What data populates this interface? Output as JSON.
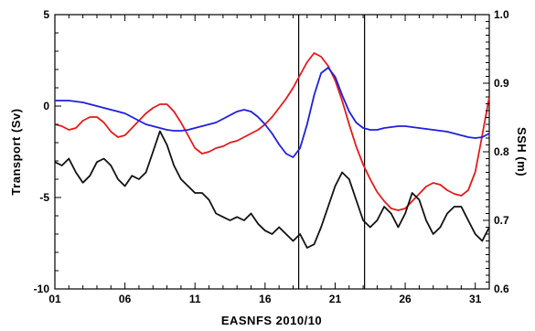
{
  "chart_data": {
    "type": "line",
    "title": "",
    "xlabel": "EASNFS 2010/10",
    "ylabel_left": "Transport (Sv)",
    "ylabel_right": "SSH (m)",
    "x_ticks": [
      "01",
      "06",
      "11",
      "16",
      "21",
      "26",
      "31"
    ],
    "x_tick_values": [
      1,
      6,
      11,
      16,
      21,
      26,
      31
    ],
    "xlim": [
      1,
      32
    ],
    "y_left_ticks": [
      "5",
      "0",
      "-5",
      "-10"
    ],
    "y_left_tick_values": [
      5,
      0,
      -5,
      -10
    ],
    "y_left_lim": [
      -10,
      5
    ],
    "y_right_ticks": [
      "1.0",
      "0.9",
      "0.8",
      "0.7",
      "0.6"
    ],
    "y_right_tick_values": [
      1.0,
      0.9,
      0.8,
      0.7,
      0.6
    ],
    "y_right_lim": [
      0.6,
      1.0
    ],
    "vertical_lines_x": [
      18.4,
      23.1
    ],
    "grid": false,
    "colors": {
      "red": "#e31a1c",
      "blue": "#1f1fdd",
      "black": "#111111"
    },
    "series": [
      {
        "color": "red",
        "axis": "left",
        "x": [
          1,
          1.5,
          2,
          2.5,
          3,
          3.5,
          4,
          4.5,
          5,
          5.5,
          6,
          6.5,
          7,
          7.5,
          8,
          8.5,
          9,
          9.5,
          10,
          10.5,
          11,
          11.5,
          12,
          12.5,
          13,
          13.5,
          14,
          14.5,
          15,
          15.5,
          16,
          16.5,
          17,
          17.5,
          18,
          18.5,
          19,
          19.5,
          20,
          20.5,
          21,
          21.5,
          22,
          22.5,
          23,
          23.5,
          24,
          24.5,
          25,
          25.5,
          26,
          26.5,
          27,
          27.5,
          28,
          28.5,
          29,
          29.5,
          30,
          30.5,
          31,
          31.5,
          32
        ],
        "values": [
          -1.0,
          -1.1,
          -1.3,
          -1.2,
          -0.8,
          -0.6,
          -0.6,
          -0.9,
          -1.4,
          -1.7,
          -1.6,
          -1.2,
          -0.8,
          -0.4,
          -0.1,
          0.1,
          0.1,
          -0.3,
          -0.9,
          -1.6,
          -2.3,
          -2.6,
          -2.5,
          -2.3,
          -2.2,
          -2.0,
          -1.9,
          -1.7,
          -1.5,
          -1.3,
          -1.0,
          -0.6,
          -0.1,
          0.4,
          1.0,
          1.7,
          2.4,
          2.9,
          2.7,
          2.2,
          1.4,
          0.3,
          -1.0,
          -2.2,
          -3.2,
          -4.0,
          -4.7,
          -5.2,
          -5.6,
          -5.7,
          -5.6,
          -5.2,
          -4.8,
          -4.4,
          -4.2,
          -4.3,
          -4.6,
          -4.8,
          -4.9,
          -4.6,
          -3.6,
          -1.6,
          0.5
        ]
      },
      {
        "color": "blue",
        "axis": "left",
        "x": [
          1,
          1.5,
          2,
          2.5,
          3,
          3.5,
          4,
          4.5,
          5,
          5.5,
          6,
          6.5,
          7,
          7.5,
          8,
          8.5,
          9,
          9.5,
          10,
          10.5,
          11,
          11.5,
          12,
          12.5,
          13,
          13.5,
          14,
          14.5,
          15,
          15.5,
          16,
          16.5,
          17,
          17.5,
          18,
          18.5,
          19,
          19.5,
          20,
          20.5,
          21,
          21.5,
          22,
          22.5,
          23,
          23.5,
          24,
          24.5,
          25,
          25.5,
          26,
          26.5,
          27,
          27.5,
          28,
          28.5,
          29,
          29.5,
          30,
          30.5,
          31,
          31.5,
          32
        ],
        "values": [
          0.3,
          0.3,
          0.3,
          0.25,
          0.2,
          0.1,
          0.0,
          -0.1,
          -0.2,
          -0.3,
          -0.4,
          -0.6,
          -0.8,
          -1.0,
          -1.1,
          -1.2,
          -1.3,
          -1.35,
          -1.35,
          -1.3,
          -1.2,
          -1.1,
          -1.0,
          -0.9,
          -0.7,
          -0.5,
          -0.3,
          -0.2,
          -0.3,
          -0.6,
          -1.0,
          -1.5,
          -2.1,
          -2.6,
          -2.8,
          -2.3,
          -1.0,
          0.6,
          1.8,
          2.1,
          1.6,
          0.6,
          -0.3,
          -0.9,
          -1.2,
          -1.3,
          -1.3,
          -1.2,
          -1.15,
          -1.1,
          -1.1,
          -1.15,
          -1.2,
          -1.25,
          -1.3,
          -1.35,
          -1.4,
          -1.5,
          -1.6,
          -1.7,
          -1.75,
          -1.7,
          -1.5
        ]
      },
      {
        "color": "black",
        "axis": "right",
        "x": [
          1,
          1.5,
          2,
          2.5,
          3,
          3.5,
          4,
          4.5,
          5,
          5.5,
          6,
          6.5,
          7,
          7.5,
          8,
          8.5,
          9,
          9.5,
          10,
          10.5,
          11,
          11.5,
          12,
          12.5,
          13,
          13.5,
          14,
          14.5,
          15,
          15.5,
          16,
          16.5,
          17,
          17.5,
          18,
          18.5,
          19,
          19.5,
          20,
          20.5,
          21,
          21.5,
          22,
          22.5,
          23,
          23.5,
          24,
          24.5,
          25,
          25.5,
          26,
          26.5,
          27,
          27.5,
          28,
          28.5,
          29,
          29.5,
          30,
          30.5,
          31,
          31.5,
          32
        ],
        "values": [
          0.785,
          0.78,
          0.79,
          0.77,
          0.755,
          0.765,
          0.785,
          0.79,
          0.78,
          0.76,
          0.75,
          0.765,
          0.76,
          0.77,
          0.8,
          0.83,
          0.81,
          0.78,
          0.76,
          0.75,
          0.74,
          0.74,
          0.73,
          0.71,
          0.705,
          0.7,
          0.705,
          0.7,
          0.71,
          0.695,
          0.685,
          0.68,
          0.69,
          0.68,
          0.67,
          0.68,
          0.66,
          0.665,
          0.69,
          0.72,
          0.75,
          0.77,
          0.76,
          0.73,
          0.7,
          0.69,
          0.7,
          0.72,
          0.71,
          0.69,
          0.71,
          0.74,
          0.73,
          0.7,
          0.68,
          0.69,
          0.71,
          0.72,
          0.72,
          0.7,
          0.68,
          0.67,
          0.69
        ]
      }
    ]
  }
}
